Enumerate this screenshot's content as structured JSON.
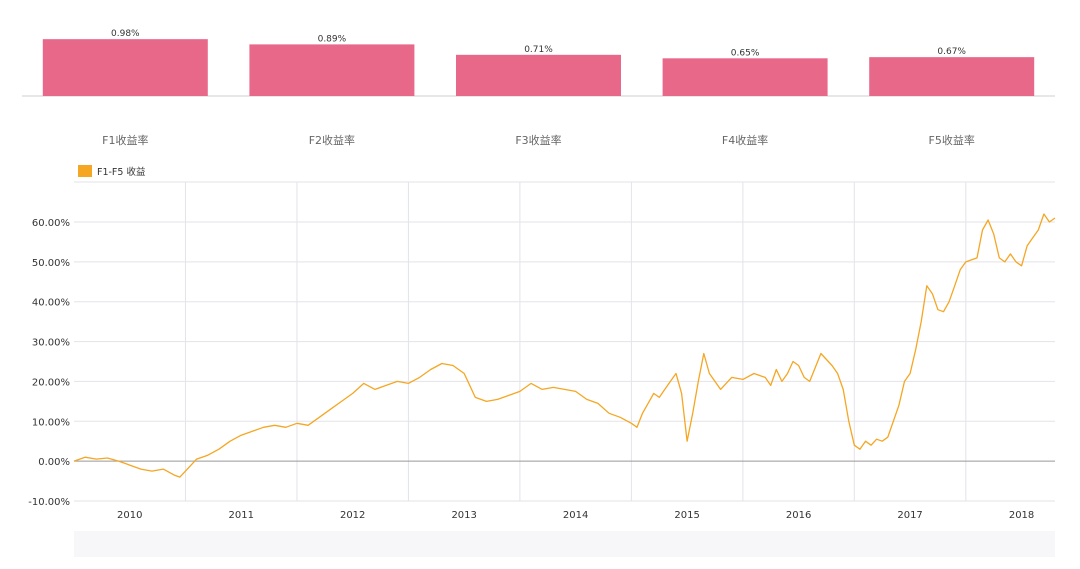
{
  "colors": {
    "bar": "#e8688a",
    "line": "#f5a623",
    "grid": "#e3e3ea",
    "zero": "#999999",
    "axis_text": "#333333",
    "bg_band": "#f7f7f9"
  },
  "chart_data": [
    {
      "type": "bar",
      "title": "",
      "categories": [
        "F1收益率",
        "F2收益率",
        "F3收益率",
        "F4收益率",
        "F5收益率"
      ],
      "values": [
        0.98,
        0.89,
        0.71,
        0.65,
        0.67
      ],
      "data_labels": [
        "0.98%",
        "0.89%",
        "0.71%",
        "0.65%",
        "0.67%"
      ],
      "ylim": [
        0,
        1.0
      ],
      "xlabel": "",
      "ylabel": ""
    },
    {
      "type": "line",
      "legend": "F1-F5 收益",
      "legend_position": "top-left",
      "ylim": [
        -10,
        70
      ],
      "y_ticks": [
        -10,
        0,
        10,
        20,
        30,
        40,
        50,
        60
      ],
      "y_tick_labels": [
        "-10.00%",
        "0.00%",
        "10.00%",
        "20.00%",
        "30.00%",
        "40.00%",
        "50.00%",
        "60.00%"
      ],
      "x_range": [
        2009.5,
        2018.3
      ],
      "x_ticks": [
        2010,
        2011,
        2012,
        2013,
        2014,
        2015,
        2016,
        2017,
        2018
      ],
      "x_tick_labels": [
        "2010",
        "2011",
        "2012",
        "2013",
        "2014",
        "2015",
        "2016",
        "2017",
        "2018"
      ],
      "x_grid_lines": [
        2010.5,
        2011.5,
        2012.5,
        2013.5,
        2014.5,
        2015.5,
        2016.5,
        2017.5
      ],
      "series": [
        {
          "name": "F1-F5 收益",
          "x": [
            2009.5,
            2009.6,
            2009.7,
            2009.8,
            2009.9,
            2010.0,
            2010.1,
            2010.2,
            2010.3,
            2010.4,
            2010.45,
            2010.5,
            2010.55,
            2010.6,
            2010.7,
            2010.8,
            2010.9,
            2011.0,
            2011.1,
            2011.2,
            2011.3,
            2011.4,
            2011.5,
            2011.6,
            2011.7,
            2011.8,
            2011.9,
            2012.0,
            2012.1,
            2012.2,
            2012.3,
            2012.4,
            2012.5,
            2012.6,
            2012.7,
            2012.8,
            2012.9,
            2013.0,
            2013.1,
            2013.2,
            2013.3,
            2013.4,
            2013.5,
            2013.6,
            2013.7,
            2013.8,
            2013.9,
            2014.0,
            2014.1,
            2014.2,
            2014.3,
            2014.4,
            2014.5,
            2014.55,
            2014.6,
            2014.7,
            2014.75,
            2014.8,
            2014.85,
            2014.9,
            2014.95,
            2015.0,
            2015.05,
            2015.1,
            2015.15,
            2015.2,
            2015.3,
            2015.4,
            2015.5,
            2015.6,
            2015.7,
            2015.75,
            2015.8,
            2015.85,
            2015.9,
            2015.95,
            2016.0,
            2016.05,
            2016.1,
            2016.2,
            2016.3,
            2016.35,
            2016.4,
            2016.45,
            2016.5,
            2016.55,
            2016.6,
            2016.65,
            2016.7,
            2016.75,
            2016.8,
            2016.9,
            2016.95,
            2017.0,
            2017.05,
            2017.1,
            2017.15,
            2017.2,
            2017.25,
            2017.3,
            2017.35,
            2017.4,
            2017.45,
            2017.5,
            2017.55,
            2017.6,
            2017.65,
            2017.7,
            2017.75,
            2017.8,
            2017.85,
            2017.9,
            2017.95,
            2018.0,
            2018.05,
            2018.1,
            2018.15,
            2018.2,
            2018.25,
            2018.3
          ],
          "y": [
            0,
            1.0,
            0.5,
            0.8,
            0.0,
            -1.0,
            -2.0,
            -2.5,
            -2.0,
            -3.5,
            -4.0,
            -2.5,
            -1.0,
            0.5,
            1.5,
            3.0,
            5.0,
            6.5,
            7.5,
            8.5,
            9.0,
            8.5,
            9.5,
            9.0,
            11.0,
            13.0,
            15.0,
            17.0,
            19.5,
            18.0,
            19.0,
            20.0,
            19.5,
            21.0,
            23.0,
            24.5,
            24.0,
            22.0,
            16.0,
            15.0,
            15.5,
            16.5,
            17.5,
            19.5,
            18.0,
            18.5,
            18.0,
            17.5,
            15.5,
            14.5,
            12.0,
            11.0,
            9.5,
            8.5,
            12.0,
            17.0,
            16.0,
            18.0,
            20.0,
            22.0,
            17.0,
            5.0,
            12.0,
            20.0,
            27.0,
            22.0,
            18.0,
            21.0,
            20.5,
            22.0,
            21.0,
            19.0,
            23.0,
            20.0,
            22.0,
            25.0,
            24.0,
            21.0,
            20.0,
            27.0,
            24.0,
            22.0,
            18.0,
            10.0,
            4.0,
            3.0,
            5.0,
            4.0,
            5.5,
            5.0,
            6.0,
            14.0,
            20.0,
            22.0,
            28.0,
            35.0,
            44.0,
            42.0,
            38.0,
            37.5,
            40.0,
            44.0,
            48.0,
            50.0,
            50.5,
            51.0,
            58.0,
            60.5,
            57.0,
            51.0,
            50.0,
            52.0,
            50.0,
            49.0,
            54.0,
            56.0,
            58.0,
            62.0,
            60.0,
            61.0
          ]
        }
      ]
    }
  ]
}
